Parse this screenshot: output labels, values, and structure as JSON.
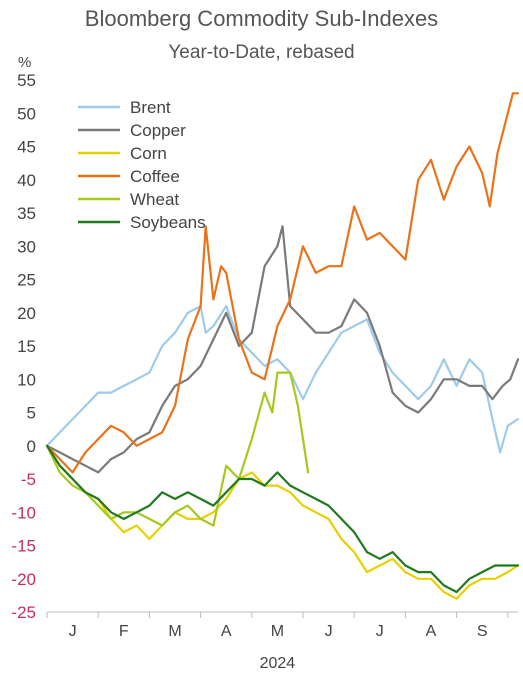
{
  "chart_data": {
    "type": "line",
    "title": "Bloomberg Commodity Sub-Indexes",
    "subtitle": "Year-to-Date, rebased",
    "y_unit": "%",
    "xlabel": "2024",
    "ylim": [
      -25,
      55
    ],
    "yticks": [
      55,
      50,
      45,
      40,
      35,
      30,
      25,
      20,
      15,
      10,
      5,
      0,
      -5,
      -10,
      -15,
      -20,
      -25
    ],
    "x_categories": [
      "J",
      "F",
      "M",
      "A",
      "M",
      "J",
      "J",
      "A",
      "S"
    ],
    "x_range_months": [
      0,
      9.2
    ],
    "negative_tick_color": "#c0305a",
    "positive_tick_color": "#444444",
    "legend_position": "top-left",
    "grid": false,
    "series": [
      {
        "name": "Brent",
        "color": "#9ecbea",
        "points": [
          [
            0,
            0
          ],
          [
            0.25,
            2
          ],
          [
            0.5,
            4
          ],
          [
            0.75,
            6
          ],
          [
            1,
            8
          ],
          [
            1.25,
            8
          ],
          [
            1.5,
            9
          ],
          [
            1.75,
            10
          ],
          [
            2,
            11
          ],
          [
            2.25,
            15
          ],
          [
            2.5,
            17
          ],
          [
            2.75,
            20
          ],
          [
            3,
            21
          ],
          [
            3.1,
            17
          ],
          [
            3.25,
            18
          ],
          [
            3.5,
            21
          ],
          [
            3.75,
            16
          ],
          [
            4,
            14
          ],
          [
            4.25,
            12
          ],
          [
            4.5,
            13
          ],
          [
            4.75,
            11
          ],
          [
            5,
            7
          ],
          [
            5.25,
            11
          ],
          [
            5.5,
            14
          ],
          [
            5.75,
            17
          ],
          [
            6,
            18
          ],
          [
            6.25,
            19
          ],
          [
            6.5,
            14
          ],
          [
            6.75,
            11
          ],
          [
            7,
            9
          ],
          [
            7.25,
            7
          ],
          [
            7.5,
            9
          ],
          [
            7.75,
            13
          ],
          [
            8,
            9
          ],
          [
            8.25,
            13
          ],
          [
            8.5,
            11
          ],
          [
            8.7,
            4
          ],
          [
            8.85,
            -1
          ],
          [
            9,
            3
          ],
          [
            9.2,
            4
          ]
        ]
      },
      {
        "name": "Copper",
        "color": "#7a7a7a",
        "points": [
          [
            0,
            0
          ],
          [
            0.25,
            -1
          ],
          [
            0.5,
            -2
          ],
          [
            0.75,
            -3
          ],
          [
            1,
            -4
          ],
          [
            1.25,
            -2
          ],
          [
            1.5,
            -1
          ],
          [
            1.75,
            1
          ],
          [
            2,
            2
          ],
          [
            2.25,
            6
          ],
          [
            2.5,
            9
          ],
          [
            2.75,
            10
          ],
          [
            3,
            12
          ],
          [
            3.25,
            16
          ],
          [
            3.5,
            20
          ],
          [
            3.75,
            15
          ],
          [
            4,
            17
          ],
          [
            4.25,
            27
          ],
          [
            4.5,
            30
          ],
          [
            4.6,
            33
          ],
          [
            4.75,
            21
          ],
          [
            5,
            19
          ],
          [
            5.25,
            17
          ],
          [
            5.5,
            17
          ],
          [
            5.75,
            18
          ],
          [
            6,
            22
          ],
          [
            6.25,
            20
          ],
          [
            6.5,
            15
          ],
          [
            6.75,
            8
          ],
          [
            7,
            6
          ],
          [
            7.25,
            5
          ],
          [
            7.5,
            7
          ],
          [
            7.75,
            10
          ],
          [
            8,
            10
          ],
          [
            8.25,
            9
          ],
          [
            8.5,
            9
          ],
          [
            8.7,
            7
          ],
          [
            8.9,
            9
          ],
          [
            9.05,
            10
          ],
          [
            9.2,
            13
          ]
        ]
      },
      {
        "name": "Corn",
        "color": "#e8d000",
        "points": [
          [
            0,
            0
          ],
          [
            0.25,
            -3
          ],
          [
            0.5,
            -5
          ],
          [
            0.75,
            -7
          ],
          [
            1,
            -8
          ],
          [
            1.25,
            -11
          ],
          [
            1.5,
            -13
          ],
          [
            1.75,
            -12
          ],
          [
            2,
            -14
          ],
          [
            2.25,
            -12
          ],
          [
            2.5,
            -10
          ],
          [
            2.75,
            -11
          ],
          [
            3,
            -11
          ],
          [
            3.25,
            -10
          ],
          [
            3.5,
            -8
          ],
          [
            3.75,
            -5
          ],
          [
            4,
            -4
          ],
          [
            4.25,
            -6
          ],
          [
            4.5,
            -6
          ],
          [
            4.75,
            -7
          ],
          [
            5,
            -9
          ],
          [
            5.25,
            -10
          ],
          [
            5.5,
            -11
          ],
          [
            5.75,
            -14
          ],
          [
            6,
            -16
          ],
          [
            6.25,
            -19
          ],
          [
            6.5,
            -18
          ],
          [
            6.75,
            -17
          ],
          [
            7,
            -19
          ],
          [
            7.25,
            -20
          ],
          [
            7.5,
            -20
          ],
          [
            7.75,
            -22
          ],
          [
            8,
            -23
          ],
          [
            8.25,
            -21
          ],
          [
            8.5,
            -20
          ],
          [
            8.75,
            -20
          ],
          [
            9,
            -19
          ],
          [
            9.2,
            -18
          ]
        ]
      },
      {
        "name": "Coffee",
        "color": "#e8731b",
        "points": [
          [
            0,
            0
          ],
          [
            0.25,
            -2
          ],
          [
            0.5,
            -4
          ],
          [
            0.75,
            -1
          ],
          [
            1,
            1
          ],
          [
            1.25,
            3
          ],
          [
            1.5,
            2
          ],
          [
            1.75,
            0
          ],
          [
            2,
            1
          ],
          [
            2.25,
            2
          ],
          [
            2.5,
            6
          ],
          [
            2.75,
            16
          ],
          [
            3,
            21
          ],
          [
            3.1,
            33
          ],
          [
            3.25,
            22
          ],
          [
            3.4,
            27
          ],
          [
            3.5,
            26
          ],
          [
            3.75,
            16
          ],
          [
            4,
            11
          ],
          [
            4.25,
            10
          ],
          [
            4.5,
            18
          ],
          [
            4.75,
            22
          ],
          [
            5,
            30
          ],
          [
            5.25,
            26
          ],
          [
            5.5,
            27
          ],
          [
            5.75,
            27
          ],
          [
            6,
            36
          ],
          [
            6.25,
            31
          ],
          [
            6.5,
            32
          ],
          [
            6.75,
            30
          ],
          [
            7,
            28
          ],
          [
            7.25,
            40
          ],
          [
            7.5,
            43
          ],
          [
            7.75,
            37
          ],
          [
            8,
            42
          ],
          [
            8.25,
            45
          ],
          [
            8.5,
            41
          ],
          [
            8.65,
            36
          ],
          [
            8.8,
            44
          ],
          [
            9,
            50
          ],
          [
            9.1,
            53
          ],
          [
            9.2,
            53
          ]
        ]
      },
      {
        "name": "Wheat",
        "color": "#a5c91f",
        "points": [
          [
            0,
            0
          ],
          [
            0.25,
            -4
          ],
          [
            0.5,
            -6
          ],
          [
            0.75,
            -7
          ],
          [
            1,
            -9
          ],
          [
            1.25,
            -11
          ],
          [
            1.5,
            -10
          ],
          [
            1.75,
            -10
          ],
          [
            2,
            -11
          ],
          [
            2.25,
            -12
          ],
          [
            2.5,
            -10
          ],
          [
            2.75,
            -9
          ],
          [
            3,
            -11
          ],
          [
            3.25,
            -12
          ],
          [
            3.5,
            -3
          ],
          [
            3.75,
            -5
          ],
          [
            4,
            1
          ],
          [
            4.25,
            8
          ],
          [
            4.4,
            5
          ],
          [
            4.5,
            11
          ],
          [
            4.75,
            11
          ],
          [
            4.9,
            6
          ],
          [
            5,
            1
          ],
          [
            5.1,
            -4
          ]
        ]
      },
      {
        "name": "Soybeans",
        "color": "#1f7a1f",
        "points": [
          [
            0,
            0
          ],
          [
            0.25,
            -3
          ],
          [
            0.5,
            -5
          ],
          [
            0.75,
            -7
          ],
          [
            1,
            -8
          ],
          [
            1.25,
            -10
          ],
          [
            1.5,
            -11
          ],
          [
            1.75,
            -10
          ],
          [
            2,
            -9
          ],
          [
            2.25,
            -7
          ],
          [
            2.5,
            -8
          ],
          [
            2.75,
            -7
          ],
          [
            3,
            -8
          ],
          [
            3.25,
            -9
          ],
          [
            3.5,
            -7
          ],
          [
            3.75,
            -5
          ],
          [
            4,
            -5
          ],
          [
            4.25,
            -6
          ],
          [
            4.5,
            -4
          ],
          [
            4.75,
            -6
          ],
          [
            5,
            -7
          ],
          [
            5.25,
            -8
          ],
          [
            5.5,
            -9
          ],
          [
            5.75,
            -11
          ],
          [
            6,
            -13
          ],
          [
            6.25,
            -16
          ],
          [
            6.5,
            -17
          ],
          [
            6.75,
            -16
          ],
          [
            7,
            -18
          ],
          [
            7.25,
            -19
          ],
          [
            7.5,
            -19
          ],
          [
            7.75,
            -21
          ],
          [
            8,
            -22
          ],
          [
            8.25,
            -20
          ],
          [
            8.5,
            -19
          ],
          [
            8.75,
            -18
          ],
          [
            9,
            -18
          ],
          [
            9.2,
            -18
          ]
        ]
      }
    ]
  }
}
